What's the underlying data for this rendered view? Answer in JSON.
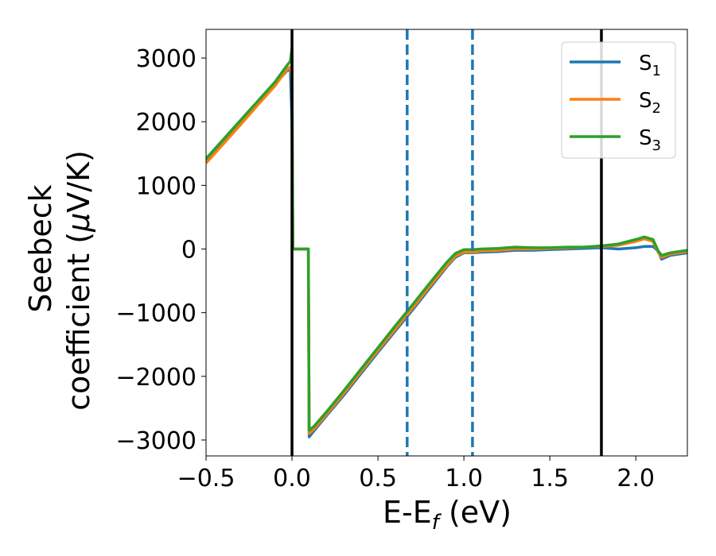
{
  "chart_data": {
    "type": "line",
    "xlabel": "E-E",
    "xlabel_sub": "f",
    "xlabel_unit": " (eV)",
    "ylabel_line1": "Seebeck",
    "ylabel_line2": "coefficient  (",
    "ylabel_mu": "μ",
    "ylabel_unit": "V/K)",
    "xlim": [
      -0.5,
      2.3
    ],
    "ylim": [
      -3250,
      3450
    ],
    "x_ticks": [
      -0.5,
      0.0,
      0.5,
      1.0,
      1.5,
      2.0
    ],
    "x_tick_labels": [
      "−0.5",
      "0.0",
      "0.5",
      "1.0",
      "1.5",
      "2.0"
    ],
    "y_ticks": [
      -3000,
      -2000,
      -1000,
      0,
      1000,
      2000,
      3000
    ],
    "y_tick_labels": [
      "−3000",
      "−2000",
      "−1000",
      "0",
      "1000",
      "2000",
      "3000"
    ],
    "grid": false,
    "legend_position": "top-right",
    "vertical_lines": [
      {
        "x": 0.0,
        "style": "solid",
        "color": "#000000"
      },
      {
        "x": 1.8,
        "style": "solid",
        "color": "#000000"
      },
      {
        "x": 0.67,
        "style": "dashed",
        "color": "#1f77b4"
      },
      {
        "x": 1.05,
        "style": "dashed",
        "color": "#1f77b4"
      }
    ],
    "series": [
      {
        "name": "S",
        "sub": "1",
        "color": "#1f77b4",
        "x": [
          -0.5,
          -0.4,
          -0.3,
          -0.2,
          -0.1,
          -0.03,
          -0.01,
          0.0,
          0.005,
          0.01,
          0.095,
          0.1,
          0.13,
          0.2,
          0.3,
          0.4,
          0.5,
          0.6,
          0.7,
          0.8,
          0.9,
          0.95,
          1.0,
          1.05,
          1.1,
          1.2,
          1.3,
          1.4,
          1.5,
          1.6,
          1.7,
          1.8,
          1.9,
          2.0,
          2.05,
          2.1,
          2.13,
          2.15,
          2.2,
          2.3
        ],
        "y": [
          1380,
          1680,
          1980,
          2280,
          2580,
          2800,
          2820,
          2000,
          0,
          0,
          0,
          -2950,
          -2850,
          -2620,
          -2300,
          -1960,
          -1620,
          -1290,
          -960,
          -620,
          -280,
          -130,
          -60,
          -60,
          -50,
          -40,
          -20,
          -20,
          -10,
          0,
          10,
          20,
          0,
          20,
          40,
          40,
          -30,
          -160,
          -100,
          -60
        ]
      },
      {
        "name": "S",
        "sub": "2",
        "color": "#ff7f0e",
        "x": [
          -0.5,
          -0.4,
          -0.3,
          -0.2,
          -0.1,
          -0.03,
          -0.01,
          0.0,
          0.005,
          0.01,
          0.095,
          0.1,
          0.13,
          0.2,
          0.3,
          0.4,
          0.5,
          0.6,
          0.7,
          0.8,
          0.9,
          0.95,
          1.0,
          1.05,
          1.1,
          1.2,
          1.3,
          1.4,
          1.5,
          1.6,
          1.7,
          1.8,
          1.9,
          2.0,
          2.05,
          2.1,
          2.13,
          2.15,
          2.2,
          2.3
        ],
        "y": [
          1350,
          1650,
          1950,
          2260,
          2560,
          2820,
          2860,
          2700,
          0,
          0,
          0,
          -2900,
          -2820,
          -2600,
          -2270,
          -1930,
          -1590,
          -1260,
          -930,
          -590,
          -260,
          -110,
          -50,
          -50,
          -30,
          -20,
          0,
          0,
          10,
          20,
          30,
          40,
          60,
          120,
          160,
          120,
          -50,
          -130,
          -80,
          -40
        ]
      },
      {
        "name": "S",
        "sub": "3",
        "color": "#2ca02c",
        "x": [
          -0.5,
          -0.4,
          -0.3,
          -0.2,
          -0.1,
          -0.03,
          -0.01,
          0.0,
          0.005,
          0.01,
          0.095,
          0.1,
          0.13,
          0.2,
          0.3,
          0.4,
          0.5,
          0.6,
          0.7,
          0.8,
          0.9,
          0.95,
          1.0,
          1.05,
          1.1,
          1.2,
          1.3,
          1.4,
          1.5,
          1.6,
          1.7,
          1.8,
          1.9,
          2.0,
          2.05,
          2.1,
          2.13,
          2.15,
          2.2,
          2.3
        ],
        "y": [
          1420,
          1720,
          2020,
          2320,
          2620,
          2880,
          2950,
          3150,
          0,
          0,
          0,
          -2850,
          -2780,
          -2560,
          -2230,
          -1890,
          -1550,
          -1210,
          -880,
          -540,
          -210,
          -70,
          -10,
          -10,
          0,
          10,
          30,
          20,
          20,
          30,
          30,
          50,
          80,
          150,
          190,
          150,
          -30,
          -100,
          -60,
          -20
        ]
      }
    ]
  }
}
